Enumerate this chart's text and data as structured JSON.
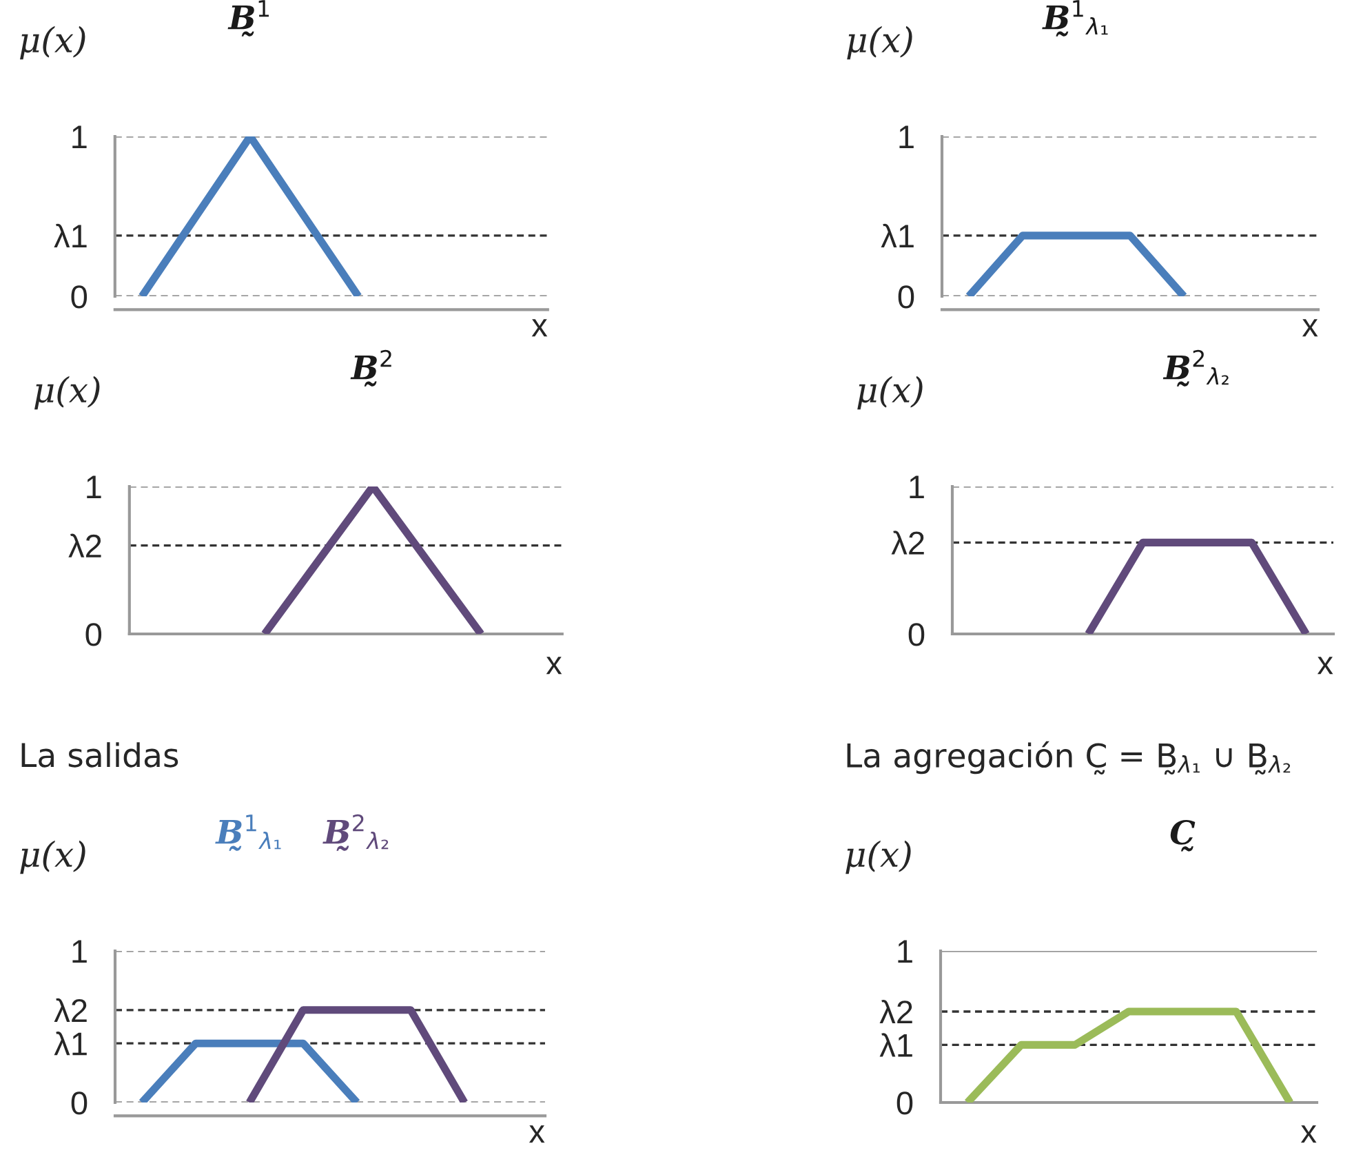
{
  "chart_data": [
    {
      "type": "line",
      "ylabel": "μ(x)",
      "xlabel": "x",
      "categories": [
        null,
        null,
        null,
        null,
        null,
        null,
        null,
        null
      ],
      "series": [
        {
          "name": "B̰$^{1}$",
          "color": "#4a7ebb",
          "values": [
            0,
            0.5,
            1,
            0.5,
            0,
            null,
            null,
            null
          ]
        }
      ],
      "ylim": [
        0,
        1
      ],
      "yticks": [
        0,
        {
          "value": 0.38,
          "label": "λ1"
        },
        1
      ],
      "tick_labels": "y",
      "ref_lines": [
        {
          "axis": "y",
          "value": 1,
          "color": "#999999",
          "line_style": "dashed"
        },
        {
          "axis": "y",
          "value": 0.38,
          "color": "#333333",
          "line_style": "dashed"
        },
        {
          "axis": "y",
          "value": 0,
          "color": "#999999",
          "line_style": "dashed"
        }
      ]
    },
    {
      "type": "line",
      "ylabel": "μ(x)",
      "xlabel": "x",
      "categories": [
        null,
        null,
        null,
        null,
        null,
        null,
        null
      ],
      "series": [
        {
          "name": "B̰$^{1}$$_{λ₁}$",
          "color": "#4a7ebb",
          "values": [
            0,
            0.38,
            0.38,
            0.38,
            0,
            null,
            null
          ]
        }
      ],
      "ylim": [
        0,
        1
      ],
      "yticks": [
        0,
        {
          "value": 0.38,
          "label": "λ1"
        },
        1
      ],
      "tick_labels": "y",
      "ref_lines": [
        {
          "axis": "y",
          "value": 1,
          "color": "#999999",
          "line_style": "dashed"
        },
        {
          "axis": "y",
          "value": 0.38,
          "color": "#333333",
          "line_style": "dashed"
        },
        {
          "axis": "y",
          "value": 0,
          "color": "#999999",
          "line_style": "dashed"
        }
      ]
    },
    {
      "type": "line",
      "ylabel": "μ(x)",
      "xlabel": "x",
      "categories": [
        null,
        null,
        null,
        null,
        null,
        null,
        null,
        null
      ],
      "series": [
        {
          "name": "B̰$^{2}$",
          "color": "#604a7b",
          "values": [
            null,
            null,
            0,
            0.5,
            1,
            0.5,
            0,
            null
          ]
        }
      ],
      "ylim": [
        0,
        1
      ],
      "yticks": [
        0,
        {
          "value": 0.6,
          "label": "λ2"
        },
        1
      ],
      "tick_labels": "y",
      "ref_lines": [
        {
          "axis": "y",
          "value": 1,
          "color": "#999999",
          "line_style": "dashed"
        },
        {
          "axis": "y",
          "value": 0.6,
          "color": "#333333",
          "line_style": "dashed"
        }
      ]
    },
    {
      "type": "line",
      "ylabel": "μ(x)",
      "xlabel": "x",
      "categories": [
        null,
        null,
        null,
        null,
        null,
        null,
        null
      ],
      "series": [
        {
          "name": "B̰$^{2}$$_{λ₂}$",
          "color": "#604a7b",
          "values": [
            null,
            null,
            0,
            0.62,
            0.62,
            0.62,
            0
          ]
        }
      ],
      "ylim": [
        0,
        1
      ],
      "yticks": [
        0,
        {
          "value": 0.62,
          "label": "λ2"
        },
        1
      ],
      "tick_labels": "y",
      "ref_lines": [
        {
          "axis": "y",
          "value": 1,
          "color": "#999999",
          "line_style": "dashed"
        },
        {
          "axis": "y",
          "value": 0.62,
          "color": "#333333",
          "line_style": "dashed"
        }
      ]
    },
    {
      "type": "line",
      "subtitle": "La salidas",
      "ylabel": "μ(x)",
      "xlabel": "x",
      "categories": [
        null,
        null,
        null,
        null,
        null,
        null,
        null,
        null
      ],
      "series": [
        {
          "name": "B̰$^{1}$$_{λ₁}$",
          "color": "#4a7ebb",
          "values": [
            0,
            0.39,
            0.39,
            0.39,
            0,
            null,
            null,
            null
          ]
        },
        {
          "name": "B̰$^{2}$$_{λ₂}$",
          "color": "#604a7b",
          "values": [
            null,
            null,
            0,
            0.61,
            0.61,
            0.61,
            0,
            null
          ]
        }
      ],
      "ylim": [
        0,
        1
      ],
      "yticks": [
        0,
        {
          "value": 0.39,
          "label": "λ1"
        },
        {
          "value": 0.61,
          "label": "λ2"
        },
        1
      ],
      "tick_labels": "y",
      "ref_lines": [
        {
          "axis": "y",
          "value": 1,
          "color": "#999999",
          "line_style": "dashed"
        },
        {
          "axis": "y",
          "value": 0.61,
          "color": "#333333",
          "line_style": "dashed"
        },
        {
          "axis": "y",
          "value": 0.39,
          "color": "#333333",
          "line_style": "dashed"
        },
        {
          "axis": "y",
          "value": 0,
          "color": "#999999",
          "line_style": "dashed"
        }
      ]
    },
    {
      "type": "line",
      "subtitle": "La agregación C̰ = B̰$_{λ₁}$ ∪ B̰$_{λ₂}$",
      "ylabel": "μ(x)",
      "xlabel": "x",
      "categories": [
        null,
        null,
        null,
        null,
        null,
        null,
        null
      ],
      "series": [
        {
          "name": "C̰",
          "color": "#9bbb59",
          "values": [
            0,
            0.38,
            0.38,
            0.6,
            0.6,
            0.6,
            0
          ]
        }
      ],
      "ylim": [
        0,
        1
      ],
      "yticks": [
        0,
        {
          "value": 0.38,
          "label": "λ1"
        },
        {
          "value": 0.6,
          "label": "λ2"
        },
        1
      ],
      "tick_labels": "y",
      "ref_lines": [
        {
          "axis": "y",
          "value": 1,
          "color": "#999999",
          "line_style": "solid"
        },
        {
          "axis": "y",
          "value": 0.6,
          "color": "#333333",
          "line_style": "dashed"
        },
        {
          "axis": "y",
          "value": 0.38,
          "color": "#333333",
          "line_style": "dashed"
        }
      ]
    }
  ]
}
